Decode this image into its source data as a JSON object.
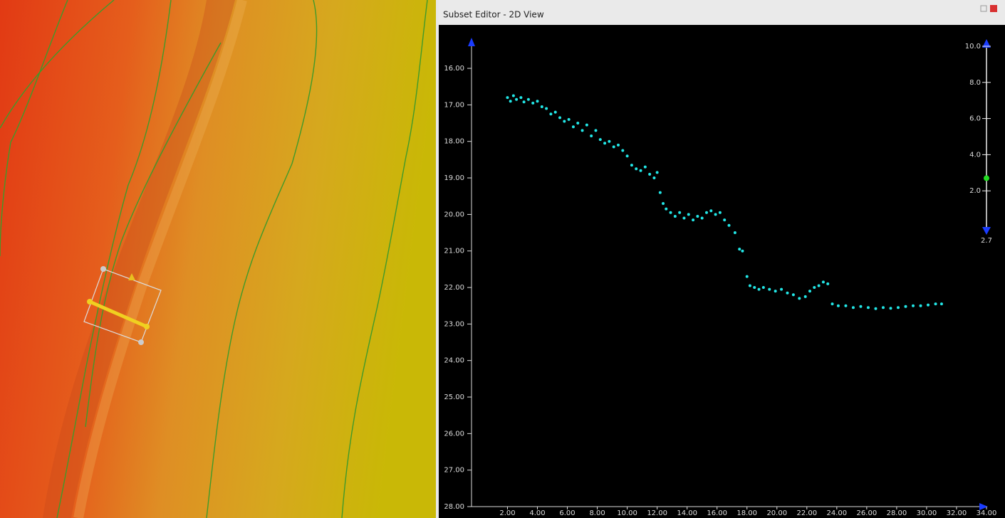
{
  "window": {
    "title": "Subset Editor - 2D View"
  },
  "chart_data": {
    "type": "scatter",
    "y_inverted": true,
    "xlim": [
      -2.4,
      34
    ],
    "ylim": [
      15.2,
      28
    ],
    "xticks": [
      {
        "value": 2,
        "label": "2.00"
      },
      {
        "value": 4,
        "label": "4.00"
      },
      {
        "value": 6,
        "label": "6.00"
      },
      {
        "value": 8,
        "label": "8.00"
      },
      {
        "value": 10,
        "label": "10.00"
      },
      {
        "value": 12,
        "label": "12.00"
      },
      {
        "value": 14,
        "label": "14.00"
      },
      {
        "value": 16,
        "label": "16.00"
      },
      {
        "value": 18,
        "label": "18.00"
      },
      {
        "value": 20,
        "label": "20.00"
      },
      {
        "value": 22,
        "label": "22.00"
      },
      {
        "value": 24,
        "label": "24.00"
      },
      {
        "value": 26,
        "label": "26.00"
      },
      {
        "value": 28,
        "label": "28.00"
      },
      {
        "value": 30,
        "label": "30.00"
      },
      {
        "value": 32,
        "label": "32.00"
      },
      {
        "value": 34,
        "label": "34.00"
      }
    ],
    "yticks": [
      {
        "value": 16,
        "label": "16.00"
      },
      {
        "value": 17,
        "label": "17.00"
      },
      {
        "value": 18,
        "label": "18.00"
      },
      {
        "value": 19,
        "label": "19.00"
      },
      {
        "value": 20,
        "label": "20.00"
      },
      {
        "value": 21,
        "label": "21.00"
      },
      {
        "value": 22,
        "label": "22.00"
      },
      {
        "value": 23,
        "label": "23.00"
      },
      {
        "value": 24,
        "label": "24.00"
      },
      {
        "value": 25,
        "label": "25.00"
      },
      {
        "value": 26,
        "label": "26.00"
      },
      {
        "value": 27,
        "label": "27.00"
      },
      {
        "value": 28,
        "label": "28.00"
      }
    ],
    "x": [
      2.0,
      2.2,
      2.4,
      2.6,
      2.9,
      3.1,
      3.4,
      3.7,
      4.0,
      4.3,
      4.6,
      4.9,
      5.2,
      5.5,
      5.8,
      6.1,
      6.4,
      6.7,
      7.0,
      7.3,
      7.6,
      7.9,
      8.2,
      8.5,
      8.8,
      9.1,
      9.4,
      9.7,
      10.0,
      10.3,
      10.6,
      10.9,
      11.2,
      11.5,
      11.8,
      12.0,
      12.2,
      12.4,
      12.6,
      12.9,
      13.2,
      13.5,
      13.8,
      14.1,
      14.4,
      14.7,
      15.0,
      15.3,
      15.6,
      15.9,
      16.2,
      16.5,
      16.8,
      17.2,
      17.5,
      17.7,
      18.0,
      18.2,
      18.5,
      18.8,
      19.1,
      19.5,
      19.9,
      20.3,
      20.7,
      21.1,
      21.5,
      21.9,
      22.2,
      22.5,
      22.8,
      23.1,
      23.4,
      23.7,
      24.1,
      24.6,
      25.1,
      25.6,
      26.1,
      26.6,
      27.1,
      27.6,
      28.1,
      28.6,
      29.1,
      29.6,
      30.1,
      30.6,
      31.0
    ],
    "series": [
      {
        "color": "#22e6e6",
        "values": [
          16.8,
          16.9,
          16.75,
          16.85,
          16.8,
          16.92,
          16.85,
          16.95,
          16.9,
          17.05,
          17.1,
          17.25,
          17.2,
          17.35,
          17.45,
          17.4,
          17.6,
          17.5,
          17.7,
          17.55,
          17.85,
          17.7,
          17.95,
          18.05,
          18.0,
          18.15,
          18.1,
          18.25,
          18.4,
          18.65,
          18.75,
          18.8,
          18.7,
          18.9,
          19.0,
          18.85,
          19.4,
          19.7,
          19.85,
          19.95,
          20.05,
          19.95,
          20.1,
          20.0,
          20.15,
          20.05,
          20.1,
          19.95,
          19.9,
          20.0,
          19.95,
          20.15,
          20.3,
          20.5,
          20.95,
          21.0,
          21.7,
          21.95,
          22.0,
          22.05,
          22.0,
          22.05,
          22.1,
          22.05,
          22.15,
          22.2,
          22.3,
          22.25,
          22.1,
          22.0,
          21.95,
          21.85,
          21.9,
          22.45,
          22.5,
          22.5,
          22.55,
          22.52,
          22.55,
          22.58,
          22.55,
          22.57,
          22.55,
          22.52,
          22.5,
          22.5,
          22.48,
          22.45,
          22.45
        ]
      }
    ]
  },
  "slider": {
    "lim": [
      0,
      10
    ],
    "ticks": [
      {
        "value": 10,
        "label": "10.0"
      },
      {
        "value": 8,
        "label": "8.0"
      },
      {
        "value": 6,
        "label": "6.0"
      },
      {
        "value": 4,
        "label": "4.0"
      },
      {
        "value": 2,
        "label": "2.0"
      }
    ],
    "value": 2.7
  }
}
